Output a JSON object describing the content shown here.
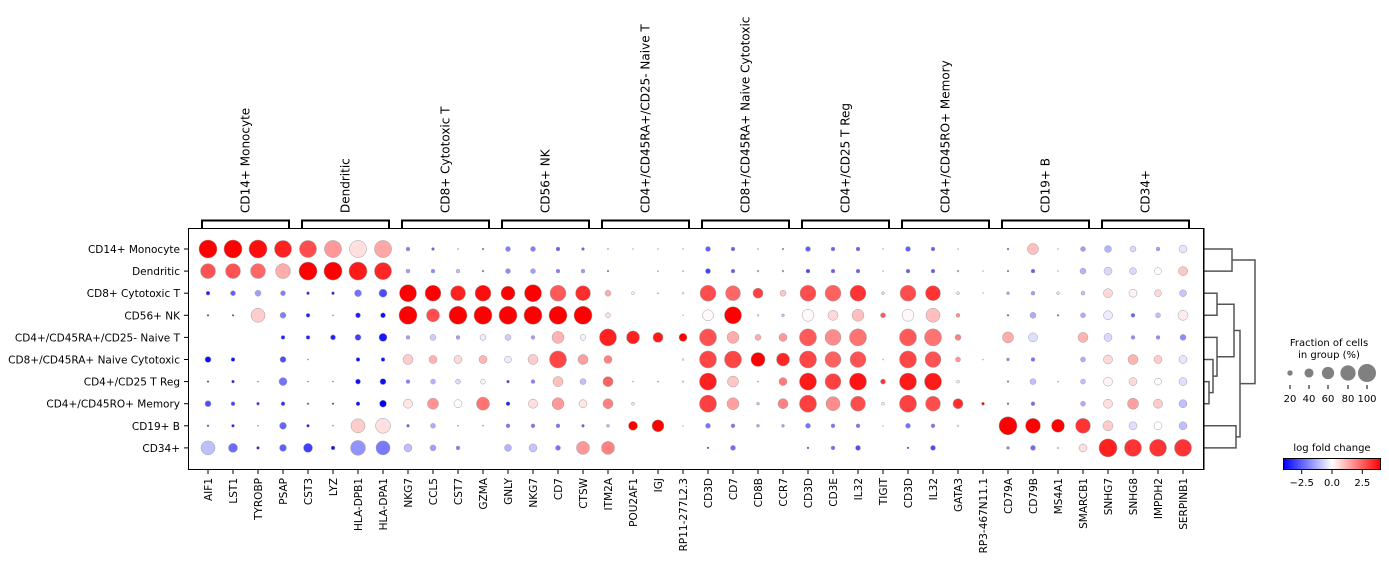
{
  "chart_data": {
    "type": "dotplot",
    "groups": [
      "CD14+ Monocyte",
      "Dendritic",
      "CD8+ Cytotoxic T",
      "CD56+ NK",
      "CD4+/CD45RA+/CD25- Naive T",
      "CD8+/CD45RA+ Naive Cytotoxic",
      "CD4+/CD25 T Reg",
      "CD4+/CD45RO+ Memory",
      "CD19+ B",
      "CD34+"
    ],
    "gene_groups": [
      {
        "label": "CD14+ Monocyte",
        "genes": [
          "AIF1",
          "LST1",
          "TYROBP",
          "PSAP"
        ]
      },
      {
        "label": "Dendritic",
        "genes": [
          "CST3",
          "LYZ",
          "HLA-DPB1",
          "HLA-DPA1"
        ]
      },
      {
        "label": "CD8+ Cytotoxic T",
        "genes": [
          "NKG7",
          "CCL5",
          "CST7",
          "GZMA"
        ]
      },
      {
        "label": "CD56+ NK",
        "genes": [
          "GNLY",
          "NKG7",
          "CD7",
          "CTSW"
        ]
      },
      {
        "label": "CD4+/CD45RA+/CD25- Naive T",
        "genes": [
          "ITM2A",
          "POU2AF1",
          "IGJ",
          "RP11-277L2.3"
        ]
      },
      {
        "label": "CD8+/CD45RA+ Naive Cytotoxic",
        "genes": [
          "CD3D",
          "CD7",
          "CD8B",
          "CCR7"
        ]
      },
      {
        "label": "CD4+/CD25 T Reg",
        "genes": [
          "CD3D",
          "CD3E",
          "IL32",
          "TIGIT"
        ]
      },
      {
        "label": "CD4+/CD45RO+ Memory",
        "genes": [
          "CD3D",
          "IL32",
          "GATA3",
          "RP3-467N11.1"
        ]
      },
      {
        "label": "CD19+ B",
        "genes": [
          "CD79A",
          "CD79B",
          "MS4A1",
          "SMARCB1"
        ]
      },
      {
        "label": "CD34+",
        "genes": [
          "SNHG7",
          "SNHG8",
          "IMPDH2",
          "SERPINB1"
        ]
      }
    ],
    "fraction_pct": [
      [
        100,
        100,
        100,
        93,
        93,
        93,
        93,
        93,
        13,
        9,
        2,
        5,
        18,
        18,
        13,
        9,
        2,
        2,
        1,
        2,
        18,
        13,
        2,
        5,
        18,
        13,
        13,
        2,
        18,
        13,
        2,
        0,
        5,
        52,
        2,
        18,
        28,
        23,
        13,
        34
      ],
      [
        78,
        78,
        78,
        78,
        100,
        100,
        100,
        93,
        13,
        13,
        13,
        5,
        18,
        18,
        13,
        13,
        5,
        0,
        2,
        2,
        18,
        13,
        5,
        5,
        13,
        13,
        13,
        2,
        13,
        13,
        5,
        2,
        5,
        13,
        2,
        23,
        34,
        28,
        28,
        40
      ],
      [
        13,
        18,
        23,
        18,
        9,
        9,
        28,
        34,
        93,
        85,
        78,
        85,
        72,
        93,
        85,
        78,
        23,
        9,
        2,
        5,
        85,
        78,
        46,
        23,
        85,
        85,
        85,
        9,
        85,
        78,
        9,
        2,
        9,
        13,
        9,
        13,
        40,
        34,
        28,
        28
      ],
      [
        5,
        5,
        72,
        23,
        13,
        2,
        18,
        18,
        100,
        65,
        100,
        100,
        100,
        100,
        100,
        100,
        18,
        0,
        0,
        2,
        52,
        93,
        5,
        9,
        58,
        46,
        58,
        18,
        58,
        72,
        13,
        0,
        5,
        23,
        5,
        18,
        40,
        13,
        18,
        46
      ],
      [
        0,
        0,
        0,
        13,
        13,
        18,
        23,
        34,
        13,
        23,
        13,
        23,
        23,
        13,
        58,
        23,
        93,
        65,
        46,
        34,
        93,
        58,
        23,
        34,
        93,
        85,
        93,
        0,
        93,
        93,
        23,
        0,
        52,
        40,
        0,
        46,
        34,
        13,
        13,
        23
      ],
      [
        23,
        13,
        0,
        23,
        2,
        0,
        13,
        13,
        46,
        34,
        34,
        34,
        28,
        46,
        93,
        46,
        34,
        0,
        0,
        5,
        93,
        93,
        72,
        65,
        93,
        85,
        85,
        2,
        93,
        85,
        18,
        2,
        9,
        13,
        0,
        18,
        40,
        46,
        34,
        34
      ],
      [
        5,
        9,
        2,
        34,
        2,
        2,
        18,
        23,
        13,
        18,
        18,
        18,
        9,
        13,
        46,
        23,
        46,
        2,
        2,
        5,
        93,
        52,
        2,
        34,
        93,
        85,
        93,
        18,
        93,
        93,
        9,
        0,
        5,
        23,
        2,
        18,
        40,
        34,
        28,
        34
      ],
      [
        23,
        13,
        9,
        13,
        5,
        5,
        13,
        28,
        40,
        52,
        34,
        65,
        13,
        40,
        58,
        34,
        46,
        9,
        0,
        0,
        93,
        58,
        9,
        46,
        93,
        72,
        78,
        9,
        93,
        78,
        46,
        9,
        5,
        13,
        0,
        18,
        40,
        52,
        40,
        34
      ],
      [
        5,
        9,
        2,
        28,
        9,
        2,
        72,
        78,
        9,
        18,
        2,
        2,
        13,
        13,
        13,
        9,
        9,
        40,
        58,
        2,
        18,
        13,
        9,
        9,
        18,
        13,
        13,
        2,
        18,
        13,
        5,
        0,
        100,
        78,
        65,
        78,
        46,
        34,
        34,
        34
      ],
      [
        72,
        40,
        9,
        28,
        40,
        13,
        78,
        72,
        34,
        23,
        13,
        0,
        28,
        34,
        18,
        65,
        65,
        0,
        0,
        0,
        5,
        18,
        0,
        0,
        5,
        13,
        18,
        0,
        5,
        18,
        0,
        0,
        9,
        18,
        5,
        34,
        100,
        93,
        93,
        93
      ]
    ],
    "log_fold_change": [
      [
        4,
        4,
        3.8,
        3.5,
        2.8,
        1.6,
        0.5,
        1.4,
        -2,
        -2.5,
        -2,
        -2.5,
        -2,
        -2,
        -2.5,
        -2.5,
        -2.5,
        0,
        0,
        0,
        -2.5,
        -2.5,
        -2,
        -2,
        -2.5,
        -2.5,
        -2.5,
        0,
        -2.5,
        -2.5,
        -0.5,
        0,
        -3,
        1,
        0,
        -1.5,
        -1.2,
        -0.6,
        -1.5,
        -0.4
      ],
      [
        2.7,
        2.7,
        2.4,
        1.3,
        4,
        4,
        3.6,
        3.4,
        -1.5,
        -1.8,
        -1,
        -2.5,
        -1.8,
        -1.5,
        -2,
        -1.5,
        -2.5,
        0,
        -2,
        -2,
        -3,
        -2.5,
        -1.5,
        -2,
        -3,
        -2.5,
        -2.5,
        0,
        -2.5,
        -2.5,
        -1.5,
        0,
        -2.5,
        -2.5,
        0,
        -1.2,
        -0.6,
        -0.6,
        0,
        0.9
      ],
      [
        -3.5,
        -2.5,
        -1.5,
        -2,
        -3.5,
        -3.5,
        -2.2,
        -2.8,
        4,
        4,
        3.5,
        3.8,
        4,
        4,
        2.6,
        3.3,
        1.3,
        0.2,
        -2.5,
        0.3,
        2.8,
        2.4,
        3,
        0.9,
        2.8,
        2.5,
        3.2,
        0.8,
        2.8,
        3.2,
        0.6,
        0,
        -1.5,
        -1.5,
        -0.5,
        -1,
        0.6,
        0.2,
        0.6,
        -0.9
      ],
      [
        -3.5,
        -3.5,
        0.8,
        -2,
        -3.5,
        -3,
        -3.5,
        -3.8,
        4,
        2.8,
        4,
        4,
        4,
        4,
        4,
        4,
        0.5,
        0,
        0,
        0,
        0.1,
        4,
        -0.5,
        -1,
        0.1,
        0.6,
        1,
        2.6,
        0.1,
        1,
        1.8,
        0,
        -3,
        -1.3,
        -2.5,
        -1.3,
        -0.3,
        -2.5,
        -1,
        0.3
      ],
      [
        0,
        0,
        0,
        -3.5,
        -3.5,
        -3.5,
        -3,
        -3.6,
        -1.5,
        -0.8,
        -1.5,
        -0.3,
        -0.8,
        -1.5,
        1.2,
        -0.2,
        3.5,
        3.5,
        3.6,
        4,
        2.7,
        1.3,
        1.3,
        1.6,
        2.6,
        1.8,
        2.2,
        0,
        2.6,
        2.2,
        2,
        0,
        1.3,
        -0.5,
        0,
        1.2,
        -0.6,
        -1.8,
        -1.8,
        -1.8
      ],
      [
        -3.8,
        -3.8,
        0,
        -2.8,
        -3,
        0,
        -3.8,
        -3.8,
        0.8,
        1.2,
        0.6,
        1.2,
        -0.3,
        0.8,
        2.9,
        1.5,
        2,
        0,
        0,
        0.3,
        2.9,
        2.9,
        4,
        3.4,
        2.9,
        2.5,
        2.7,
        0,
        2.9,
        2.7,
        1.7,
        0,
        -2,
        -2.2,
        0,
        -1.3,
        0.6,
        1.2,
        0.8,
        -0.4
      ],
      [
        -3.5,
        -3.5,
        -3,
        -2.2,
        -3,
        -3.5,
        -3.8,
        -3.8,
        -2,
        -1.2,
        -0.6,
        0.2,
        -3,
        -2,
        1,
        -1,
        2.5,
        -1,
        -2.5,
        0.3,
        3.5,
        0.9,
        -2,
        2.1,
        3.6,
        3,
        3.7,
        3.2,
        3.6,
        3.6,
        0.3,
        0,
        -2.5,
        -1,
        -1.5,
        -1,
        0.2,
        0.6,
        0,
        -0.5
      ],
      [
        -2.8,
        -3,
        -3.2,
        -3.3,
        -3.2,
        -3.5,
        -3.8,
        -4,
        0.4,
        1.7,
        0,
        2.2,
        -3.5,
        0.5,
        1.6,
        0.4,
        2,
        0.5,
        0,
        0,
        3,
        1.5,
        -1,
        2,
        3,
        1.8,
        2.8,
        0.5,
        3,
        2.8,
        3.3,
        4,
        -3,
        -2.3,
        0,
        -1.3,
        0.5,
        1.5,
        0.8,
        -1
      ],
      [
        -3.5,
        -3.5,
        -2.5,
        -2.4,
        -3.5,
        -3.5,
        0.8,
        0.5,
        -2.5,
        -1.3,
        -3,
        -2.5,
        -2.2,
        -2.2,
        -2.2,
        -2.5,
        -1.2,
        4,
        4,
        0,
        -2.2,
        -2.2,
        -1.5,
        -1.5,
        -2.2,
        -2.2,
        -2.2,
        0,
        -2.2,
        -2.2,
        0,
        0,
        4,
        4,
        4,
        3.2,
        0.8,
        -0.5,
        0,
        -1
      ],
      [
        -1,
        -2.3,
        -3.5,
        -2.5,
        -3,
        -3.8,
        -1.7,
        -2.1,
        -1,
        -1.5,
        -2,
        0,
        -1.2,
        -0.9,
        -2.2,
        1.6,
        2,
        0,
        0,
        0,
        -3.5,
        -2.3,
        0,
        0,
        -3.5,
        -2.3,
        -2.8,
        0,
        -3.5,
        -2.8,
        0,
        0,
        -2,
        -2.3,
        -0.3,
        0.5,
        3.5,
        3.2,
        3.2,
        3.2
      ]
    ],
    "color_scale": {
      "colormap": "bwr",
      "vmin": -4,
      "vmax": 4,
      "low": "#0000ff",
      "mid": "#ffffff",
      "high": "#ff0000"
    },
    "size_legend": {
      "title_line1": "Fraction of cells",
      "title_line2": "in group (%)",
      "values": [
        20,
        40,
        60,
        80,
        100
      ],
      "labels": [
        "20",
        "40",
        "60",
        "80",
        "100"
      ],
      "color": "#808080"
    },
    "color_legend": {
      "title": "log fold change",
      "ticks": [
        -2.5,
        0.0,
        2.5
      ],
      "tick_labels": [
        "−2.5",
        "0.0",
        "2.5"
      ]
    },
    "dendrogram": {
      "side": "right",
      "line_color": "#555555"
    }
  }
}
